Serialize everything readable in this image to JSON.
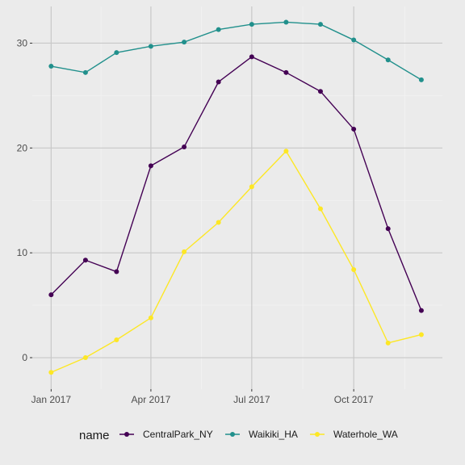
{
  "chart_data": {
    "type": "line",
    "title": "",
    "xlabel": "",
    "ylabel": "",
    "x": [
      "2017-01",
      "2017-02",
      "2017-03",
      "2017-04",
      "2017-05",
      "2017-06",
      "2017-07",
      "2017-08",
      "2017-09",
      "2017-10",
      "2017-11",
      "2017-12"
    ],
    "x_tick_labels": [
      "Jan 2017",
      "Apr 2017",
      "Jul 2017",
      "Oct 2017"
    ],
    "x_tick_positions": [
      0,
      3,
      6,
      9
    ],
    "y_ticks": [
      0,
      10,
      20,
      30
    ],
    "xlim": [
      "2016-12-15",
      "2017-12-20"
    ],
    "ylim": [
      -3,
      33.5
    ],
    "grid": true,
    "legend_position": "bottom",
    "legend_title": "name",
    "series": [
      {
        "name": "CentralPark_NY",
        "color": "#440154",
        "values": [
          6.0,
          9.3,
          8.2,
          18.3,
          20.1,
          26.3,
          28.7,
          27.2,
          25.4,
          21.8,
          12.3,
          4.5
        ]
      },
      {
        "name": "Waikiki_HA",
        "color": "#21908c",
        "values": [
          27.8,
          27.2,
          29.1,
          29.7,
          30.1,
          31.3,
          31.8,
          32.0,
          31.8,
          30.3,
          28.4,
          26.5
        ]
      },
      {
        "name": "Waterhole_WA",
        "color": "#fde725",
        "values": [
          -1.4,
          0.0,
          1.7,
          3.8,
          10.1,
          12.9,
          16.3,
          19.7,
          14.2,
          8.4,
          1.4,
          2.2
        ]
      }
    ]
  }
}
